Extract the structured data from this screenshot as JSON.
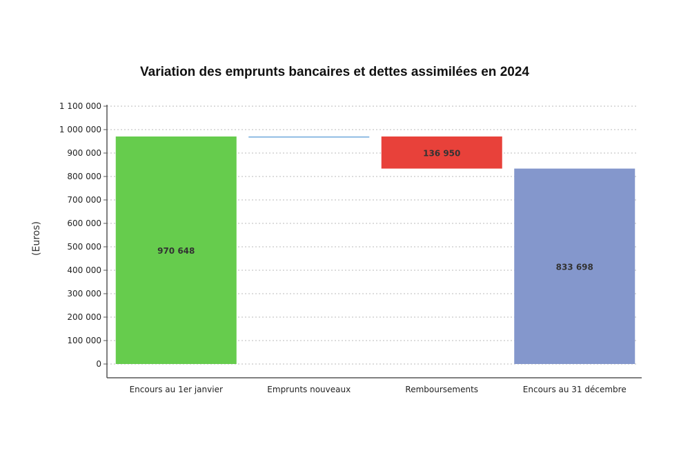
{
  "chart_data": {
    "type": "bar",
    "subtype": "waterfall",
    "title": "Variation des emprunts bancaires et dettes assimilées en 2024",
    "xlabel": "",
    "ylabel": "(Euros)",
    "ylim": [
      0,
      1100000
    ],
    "yticks": [
      0,
      100000,
      200000,
      300000,
      400000,
      500000,
      600000,
      700000,
      800000,
      900000,
      1000000,
      1100000
    ],
    "ytick_labels": [
      "0",
      "100 000",
      "200 000",
      "300 000",
      "400 000",
      "500 000",
      "600 000",
      "700 000",
      "800 000",
      "900 000",
      "1 000 000",
      "1 100 000"
    ],
    "grid": true,
    "categories": [
      "Encours au 1er janvier",
      "Emprunts nouveaux",
      "Remboursements",
      "Encours au 31 décembre"
    ],
    "bars": [
      {
        "category": "Encours au 1er janvier",
        "kind": "total",
        "base": 0,
        "value": 970648,
        "label": "970 648",
        "color": "#66cc4d"
      },
      {
        "category": "Emprunts nouveaux",
        "kind": "increase",
        "base": 970648,
        "value": 0,
        "label": "",
        "color": "#6fa8dc"
      },
      {
        "category": "Remboursements",
        "kind": "decrease",
        "base": 833698,
        "value": 136950,
        "label": "136 950",
        "color": "#e8413a"
      },
      {
        "category": "Encours au 31 décembre",
        "kind": "total",
        "base": 0,
        "value": 833698,
        "label": "833 698",
        "color": "#8497cc"
      }
    ]
  }
}
